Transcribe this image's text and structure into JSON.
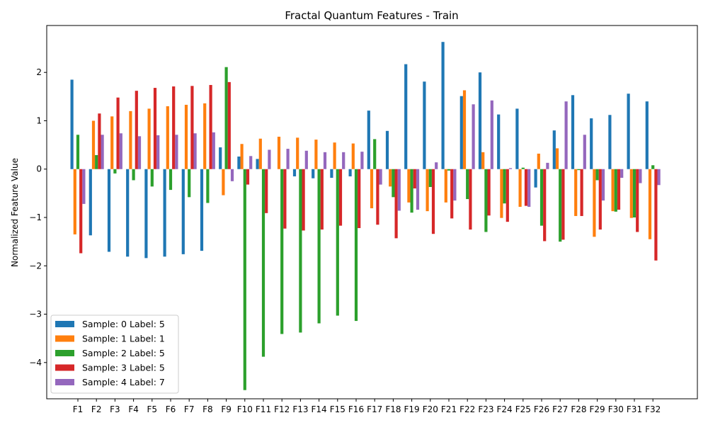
{
  "chart_data": {
    "type": "bar",
    "title": "Fractal Quantum Features - Train",
    "xlabel": "",
    "ylabel": "Normalized Feature Value",
    "ylim": [
      -4.75,
      2.97
    ],
    "yticks": [
      2,
      1,
      0,
      -1,
      -2,
      -3,
      -4
    ],
    "ytick_labels": [
      "2",
      "1",
      "0",
      "−1",
      "−2",
      "−3",
      "−4"
    ],
    "legend_position": "lower-left",
    "grid": false,
    "categories": [
      "F1",
      "F2",
      "F3",
      "F4",
      "F5",
      "F6",
      "F7",
      "F8",
      "F9",
      "F10",
      "F11",
      "F12",
      "F13",
      "F14",
      "F15",
      "F16",
      "F17",
      "F18",
      "F19",
      "F20",
      "F21",
      "F22",
      "F23",
      "F24",
      "F25",
      "F26",
      "F27",
      "F28",
      "F29",
      "F30",
      "F31",
      "F32"
    ],
    "series": [
      {
        "name": "Sample: 0 Label: 5",
        "color": "#1f77b4",
        "values": [
          1.85,
          -1.37,
          -1.71,
          -1.81,
          -1.84,
          -1.81,
          -1.76,
          -1.69,
          0.45,
          0.26,
          0.21,
          0.0,
          -0.15,
          -0.19,
          -0.18,
          -0.15,
          1.21,
          0.79,
          2.17,
          1.81,
          2.63,
          1.51,
          2.0,
          1.13,
          1.25,
          -0.38,
          0.8,
          1.53,
          1.05,
          1.12,
          1.56,
          1.4
        ]
      },
      {
        "name": "Sample: 1 Label: 1",
        "color": "#ff7f0e",
        "values": [
          -1.35,
          1.0,
          1.09,
          1.2,
          1.25,
          1.3,
          1.33,
          1.36,
          -0.54,
          0.52,
          0.63,
          0.67,
          0.65,
          0.61,
          0.55,
          0.53,
          -0.81,
          -0.36,
          -0.69,
          -0.87,
          -0.69,
          1.63,
          0.35,
          -1.01,
          -0.78,
          0.32,
          0.43,
          -0.97,
          -1.4,
          -0.87,
          -1.01,
          -1.45
        ]
      },
      {
        "name": "Sample: 2 Label: 5",
        "color": "#2ca02c",
        "values": [
          0.71,
          0.29,
          -0.09,
          -0.23,
          -0.36,
          -0.43,
          -0.58,
          -0.7,
          2.11,
          -4.57,
          -3.88,
          -3.41,
          -3.38,
          -3.19,
          -3.03,
          -3.14,
          0.62,
          -0.58,
          -0.9,
          -0.37,
          -0.03,
          -0.62,
          -1.3,
          -0.71,
          0.03,
          -1.17,
          -1.5,
          -0.02,
          -0.23,
          -0.88,
          -1.0,
          0.08
        ]
      },
      {
        "name": "Sample: 3 Label: 5",
        "color": "#d62728",
        "values": [
          -1.74,
          1.15,
          1.48,
          1.62,
          1.68,
          1.71,
          1.72,
          1.74,
          1.8,
          -0.32,
          -0.91,
          -1.23,
          -1.27,
          -1.25,
          -1.17,
          -1.22,
          -1.15,
          -1.43,
          -0.4,
          -1.34,
          -1.02,
          -1.25,
          -0.96,
          -1.09,
          -0.76,
          -1.49,
          -1.46,
          -0.97,
          -1.25,
          -0.84,
          -1.3,
          -1.89
        ]
      },
      {
        "name": "Sample: 4 Label: 7",
        "color": "#9467bd",
        "values": [
          -0.72,
          0.71,
          0.74,
          0.68,
          0.7,
          0.71,
          0.74,
          0.76,
          -0.25,
          0.27,
          0.4,
          0.42,
          0.38,
          0.35,
          0.35,
          0.36,
          -0.32,
          -0.86,
          -0.84,
          0.14,
          -0.65,
          1.34,
          1.42,
          0.02,
          -0.78,
          0.13,
          1.4,
          0.71,
          -0.65,
          -0.18,
          -0.29,
          -0.33
        ]
      }
    ]
  }
}
